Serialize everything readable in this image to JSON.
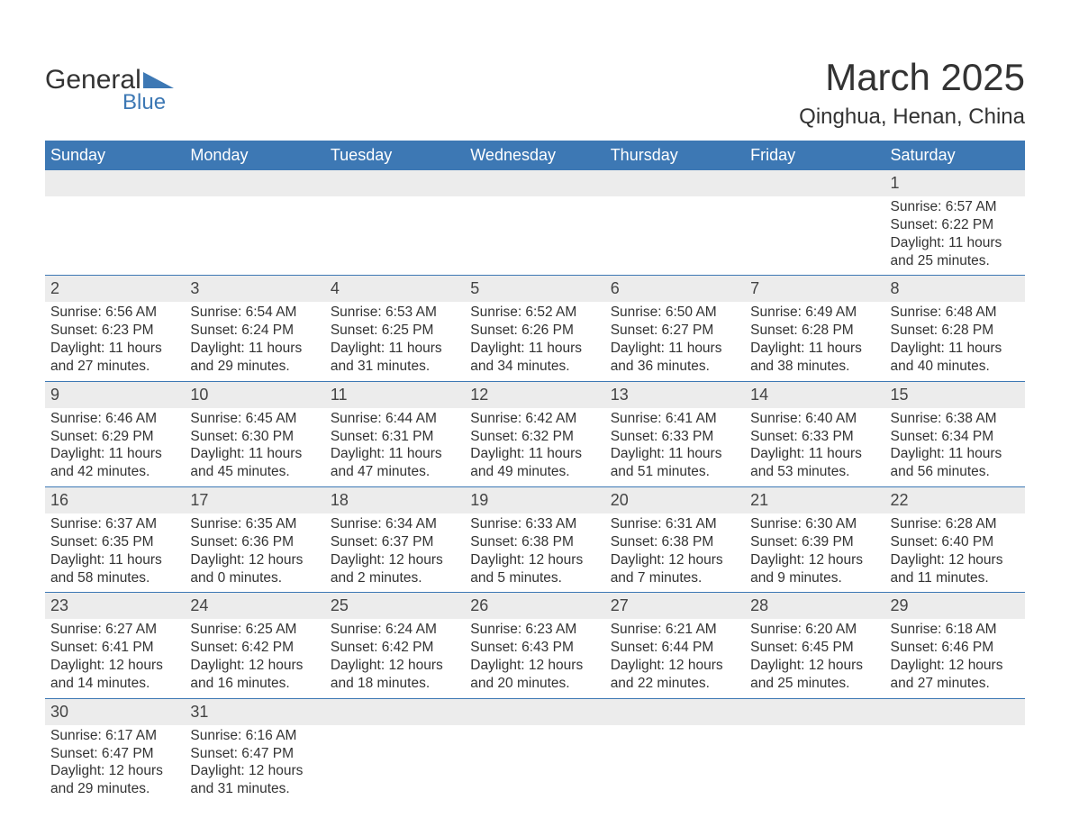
{
  "brand": {
    "word1": "General",
    "word2": "Blue",
    "tri_color": "#3d78b4"
  },
  "title": "March 2025",
  "location": "Qinghua, Henan, China",
  "colors": {
    "header_bg": "#3d78b4",
    "header_text": "#ffffff",
    "daynum_bg": "#ececec",
    "row_divider": "#3d78b4",
    "body_text": "#333333",
    "page_bg": "#ffffff"
  },
  "day_headers": [
    "Sunday",
    "Monday",
    "Tuesday",
    "Wednesday",
    "Thursday",
    "Friday",
    "Saturday"
  ],
  "labels": {
    "sunrise": "Sunrise:",
    "sunset": "Sunset:",
    "daylight": "Daylight:"
  },
  "weeks": [
    [
      null,
      null,
      null,
      null,
      null,
      null,
      {
        "n": "1",
        "sunrise": "6:57 AM",
        "sunset": "6:22 PM",
        "dl1": "11 hours",
        "dl2": "and 25 minutes."
      }
    ],
    [
      {
        "n": "2",
        "sunrise": "6:56 AM",
        "sunset": "6:23 PM",
        "dl1": "11 hours",
        "dl2": "and 27 minutes."
      },
      {
        "n": "3",
        "sunrise": "6:54 AM",
        "sunset": "6:24 PM",
        "dl1": "11 hours",
        "dl2": "and 29 minutes."
      },
      {
        "n": "4",
        "sunrise": "6:53 AM",
        "sunset": "6:25 PM",
        "dl1": "11 hours",
        "dl2": "and 31 minutes."
      },
      {
        "n": "5",
        "sunrise": "6:52 AM",
        "sunset": "6:26 PM",
        "dl1": "11 hours",
        "dl2": "and 34 minutes."
      },
      {
        "n": "6",
        "sunrise": "6:50 AM",
        "sunset": "6:27 PM",
        "dl1": "11 hours",
        "dl2": "and 36 minutes."
      },
      {
        "n": "7",
        "sunrise": "6:49 AM",
        "sunset": "6:28 PM",
        "dl1": "11 hours",
        "dl2": "and 38 minutes."
      },
      {
        "n": "8",
        "sunrise": "6:48 AM",
        "sunset": "6:28 PM",
        "dl1": "11 hours",
        "dl2": "and 40 minutes."
      }
    ],
    [
      {
        "n": "9",
        "sunrise": "6:46 AM",
        "sunset": "6:29 PM",
        "dl1": "11 hours",
        "dl2": "and 42 minutes."
      },
      {
        "n": "10",
        "sunrise": "6:45 AM",
        "sunset": "6:30 PM",
        "dl1": "11 hours",
        "dl2": "and 45 minutes."
      },
      {
        "n": "11",
        "sunrise": "6:44 AM",
        "sunset": "6:31 PM",
        "dl1": "11 hours",
        "dl2": "and 47 minutes."
      },
      {
        "n": "12",
        "sunrise": "6:42 AM",
        "sunset": "6:32 PM",
        "dl1": "11 hours",
        "dl2": "and 49 minutes."
      },
      {
        "n": "13",
        "sunrise": "6:41 AM",
        "sunset": "6:33 PM",
        "dl1": "11 hours",
        "dl2": "and 51 minutes."
      },
      {
        "n": "14",
        "sunrise": "6:40 AM",
        "sunset": "6:33 PM",
        "dl1": "11 hours",
        "dl2": "and 53 minutes."
      },
      {
        "n": "15",
        "sunrise": "6:38 AM",
        "sunset": "6:34 PM",
        "dl1": "11 hours",
        "dl2": "and 56 minutes."
      }
    ],
    [
      {
        "n": "16",
        "sunrise": "6:37 AM",
        "sunset": "6:35 PM",
        "dl1": "11 hours",
        "dl2": "and 58 minutes."
      },
      {
        "n": "17",
        "sunrise": "6:35 AM",
        "sunset": "6:36 PM",
        "dl1": "12 hours",
        "dl2": "and 0 minutes."
      },
      {
        "n": "18",
        "sunrise": "6:34 AM",
        "sunset": "6:37 PM",
        "dl1": "12 hours",
        "dl2": "and 2 minutes."
      },
      {
        "n": "19",
        "sunrise": "6:33 AM",
        "sunset": "6:38 PM",
        "dl1": "12 hours",
        "dl2": "and 5 minutes."
      },
      {
        "n": "20",
        "sunrise": "6:31 AM",
        "sunset": "6:38 PM",
        "dl1": "12 hours",
        "dl2": "and 7 minutes."
      },
      {
        "n": "21",
        "sunrise": "6:30 AM",
        "sunset": "6:39 PM",
        "dl1": "12 hours",
        "dl2": "and 9 minutes."
      },
      {
        "n": "22",
        "sunrise": "6:28 AM",
        "sunset": "6:40 PM",
        "dl1": "12 hours",
        "dl2": "and 11 minutes."
      }
    ],
    [
      {
        "n": "23",
        "sunrise": "6:27 AM",
        "sunset": "6:41 PM",
        "dl1": "12 hours",
        "dl2": "and 14 minutes."
      },
      {
        "n": "24",
        "sunrise": "6:25 AM",
        "sunset": "6:42 PM",
        "dl1": "12 hours",
        "dl2": "and 16 minutes."
      },
      {
        "n": "25",
        "sunrise": "6:24 AM",
        "sunset": "6:42 PM",
        "dl1": "12 hours",
        "dl2": "and 18 minutes."
      },
      {
        "n": "26",
        "sunrise": "6:23 AM",
        "sunset": "6:43 PM",
        "dl1": "12 hours",
        "dl2": "and 20 minutes."
      },
      {
        "n": "27",
        "sunrise": "6:21 AM",
        "sunset": "6:44 PM",
        "dl1": "12 hours",
        "dl2": "and 22 minutes."
      },
      {
        "n": "28",
        "sunrise": "6:20 AM",
        "sunset": "6:45 PM",
        "dl1": "12 hours",
        "dl2": "and 25 minutes."
      },
      {
        "n": "29",
        "sunrise": "6:18 AM",
        "sunset": "6:46 PM",
        "dl1": "12 hours",
        "dl2": "and 27 minutes."
      }
    ],
    [
      {
        "n": "30",
        "sunrise": "6:17 AM",
        "sunset": "6:47 PM",
        "dl1": "12 hours",
        "dl2": "and 29 minutes."
      },
      {
        "n": "31",
        "sunrise": "6:16 AM",
        "sunset": "6:47 PM",
        "dl1": "12 hours",
        "dl2": "and 31 minutes."
      },
      null,
      null,
      null,
      null,
      null
    ]
  ]
}
